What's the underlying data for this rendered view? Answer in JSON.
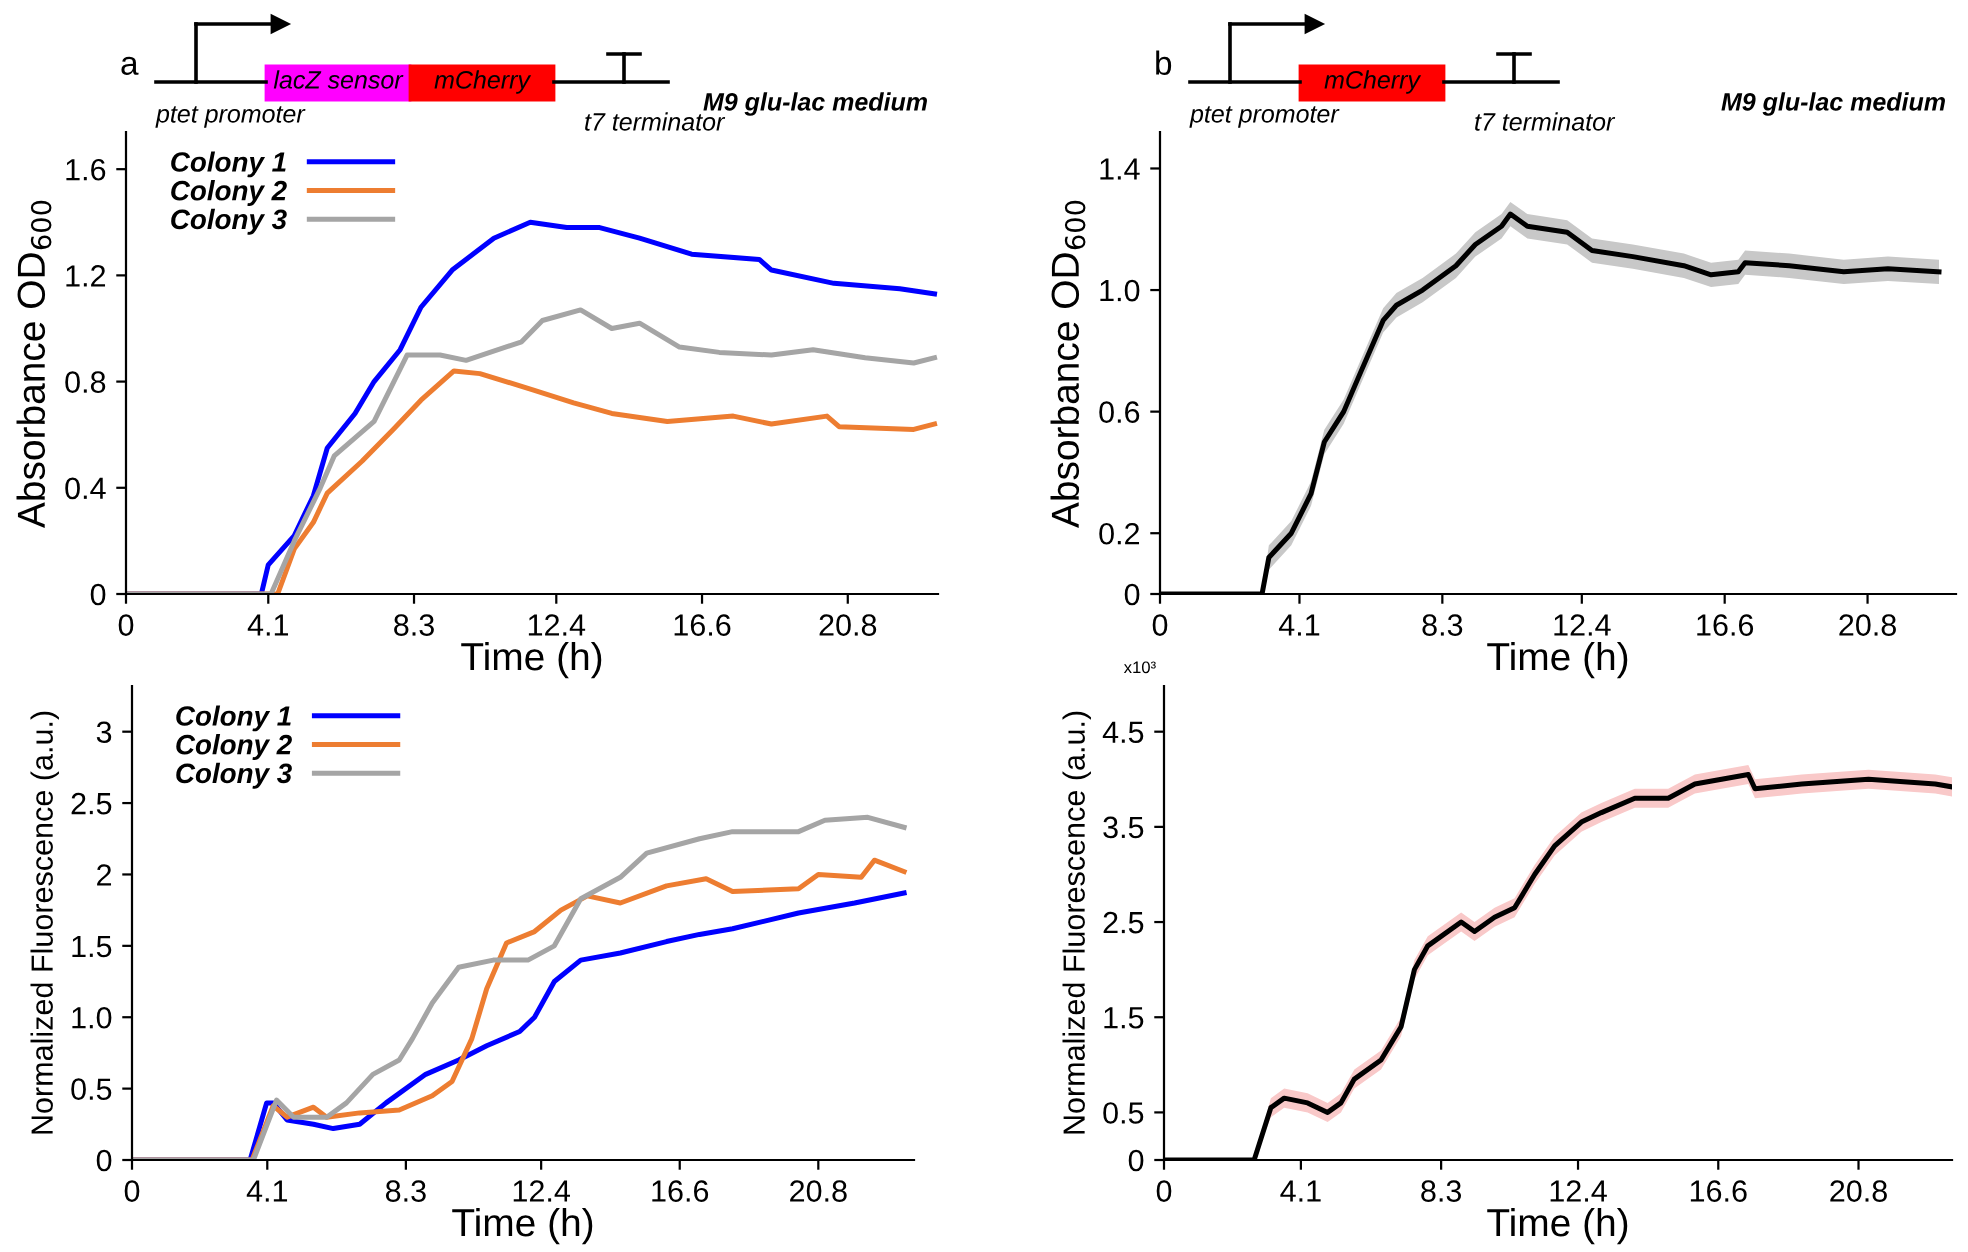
{
  "chart_data": [
    {
      "type": "line",
      "xlabel": "Time (h)",
      "ylabel": "Absorbance OD$_{600}$",
      "xlim": [
        0,
        23.4
      ],
      "ylim": [
        0,
        1.74
      ],
      "xticks": [
        0,
        4.1,
        8.3,
        12.4,
        16.6,
        20.8
      ],
      "yticks": [
        0,
        0.4,
        0.8,
        1.2,
        1.6
      ],
      "legend": "top left",
      "grid": false,
      "line_style": "solid",
      "marker": "none",
      "annotations": [
        "a",
        "lacZ sensor",
        "mCherry",
        "ptet promoter",
        "t7 terminator",
        "M9 glu-lac medium"
      ],
      "series": [
        {
          "name": "Colony 1",
          "color": "#0000ff",
          "x": [
            0,
            3.9,
            4.1,
            4.85,
            5.4,
            5.8,
            6.6,
            7.15,
            7.9,
            8.5,
            9.4,
            10.6,
            11.65,
            12.7,
            13.65,
            14.8,
            16.3,
            18.25,
            18.6,
            20.4,
            22.3,
            23.3
          ],
          "values": [
            0,
            0,
            0.11,
            0.22,
            0.37,
            0.55,
            0.68,
            0.8,
            0.92,
            1.08,
            1.22,
            1.34,
            1.4,
            1.38,
            1.38,
            1.34,
            1.28,
            1.26,
            1.22,
            1.17,
            1.15,
            1.13
          ]
        },
        {
          "name": "Colony 2",
          "color": "#ed7d31",
          "x": [
            0,
            4.37,
            4.85,
            5.4,
            5.8,
            6.8,
            7.7,
            8.5,
            9.45,
            10.2,
            11.7,
            12.9,
            14.0,
            15.6,
            17.5,
            18.6,
            20.2,
            20.55,
            22.7,
            23.3
          ],
          "values": [
            0,
            0,
            0.17,
            0.27,
            0.38,
            0.5,
            0.62,
            0.73,
            0.84,
            0.83,
            0.77,
            0.72,
            0.68,
            0.65,
            0.67,
            0.64,
            0.67,
            0.63,
            0.62,
            0.64
          ]
        },
        {
          "name": "Colony 3",
          "color": "#a5a5a5",
          "x": [
            0,
            4.18,
            4.85,
            5.6,
            6.0,
            7.15,
            8.1,
            9.05,
            9.8,
            11.4,
            12.0,
            13.1,
            14.0,
            14.8,
            15.95,
            17.1,
            18.6,
            19.8,
            21.3,
            22.7,
            23.3
          ],
          "values": [
            0,
            0,
            0.2,
            0.4,
            0.52,
            0.65,
            0.9,
            0.9,
            0.88,
            0.95,
            1.03,
            1.07,
            1.0,
            1.02,
            0.93,
            0.91,
            0.9,
            0.92,
            0.89,
            0.87,
            0.89
          ]
        }
      ]
    },
    {
      "type": "line",
      "xlabel": "Time (h)",
      "ylabel": "Absorbance OD$_{600}$",
      "xlim": [
        0,
        23.4
      ],
      "ylim": [
        0,
        1.52
      ],
      "xticks": [
        0,
        4.1,
        8.3,
        12.4,
        16.6,
        20.8
      ],
      "yticks": [
        0,
        0.2,
        0.6,
        {
          "value": 1,
          "label": "1.0"
        },
        1.4
      ],
      "grid": false,
      "line_style": "solid",
      "marker": "none",
      "annotations": [
        "b",
        "mCherry",
        "ptet promoter",
        "t7 terminator",
        "M9 glu-lac medium"
      ],
      "series": [
        {
          "color": "#000000",
          "x": [
            0,
            3.0,
            3.2,
            3.86,
            4.44,
            4.83,
            5.4,
            5.9,
            6.56,
            6.95,
            7.72,
            8.7,
            9.27,
            10.04,
            10.3,
            10.8,
            11.97,
            12.7,
            13.9,
            15.4,
            16.2,
            17.0,
            17.2,
            18.5,
            20.1,
            21.4,
            22.9
          ],
          "values": [
            0,
            0,
            0.12,
            0.2,
            0.33,
            0.5,
            0.6,
            0.73,
            0.9,
            0.95,
            1.0,
            1.08,
            1.15,
            1.21,
            1.25,
            1.21,
            1.19,
            1.13,
            1.11,
            1.08,
            1.05,
            1.06,
            1.09,
            1.08,
            1.06,
            1.07,
            1.06
          ],
          "lower": [
            0,
            0,
            0.08,
            0.16,
            0.29,
            0.46,
            0.56,
            0.69,
            0.86,
            0.91,
            0.96,
            1.04,
            1.11,
            1.17,
            1.21,
            1.17,
            1.15,
            1.09,
            1.07,
            1.04,
            1.01,
            1.02,
            1.05,
            1.04,
            1.02,
            1.03,
            1.02
          ],
          "upper": [
            0,
            0,
            0.16,
            0.24,
            0.37,
            0.54,
            0.64,
            0.77,
            0.94,
            0.99,
            1.04,
            1.12,
            1.19,
            1.25,
            1.29,
            1.25,
            1.23,
            1.17,
            1.15,
            1.12,
            1.09,
            1.1,
            1.13,
            1.12,
            1.1,
            1.11,
            1.1
          ]
        }
      ]
    },
    {
      "type": "line",
      "xlabel": "Time (h)",
      "ylabel": "Normalized Fluorescence (a.u.)",
      "xlim": [
        0,
        23.7
      ],
      "ylim": [
        0,
        3.32
      ],
      "xticks": [
        0,
        4.1,
        8.3,
        12.4,
        16.6,
        20.8
      ],
      "yticks": [
        0,
        0.5,
        {
          "value": 1,
          "label": "1.0"
        },
        1.5,
        2,
        2.5,
        3
      ],
      "legend": "top left",
      "grid": false,
      "line_style": "solid",
      "marker": "none",
      "series": [
        {
          "name": "Colony 1",
          "color": "#0000ff",
          "x": [
            0,
            3.58,
            4.08,
            4.28,
            4.7,
            5.5,
            6.1,
            6.9,
            7.7,
            8.9,
            9.9,
            10.75,
            11.75,
            12.2,
            12.8,
            13.6,
            14.8,
            16.2,
            17.2,
            18.2,
            20.2,
            21.9,
            23.4
          ],
          "values": [
            0,
            0,
            0.4,
            0.4,
            0.28,
            0.25,
            0.22,
            0.25,
            0.4,
            0.6,
            0.7,
            0.8,
            0.9,
            1.0,
            1.25,
            1.4,
            1.45,
            1.53,
            1.58,
            1.62,
            1.73,
            1.8,
            1.87
          ]
        },
        {
          "name": "Colony 2",
          "color": "#ed7d31",
          "x": [
            0,
            3.64,
            4.28,
            4.7,
            5.5,
            5.9,
            6.9,
            8.1,
            9.1,
            9.7,
            10.3,
            10.75,
            11.35,
            12.2,
            13.0,
            13.8,
            14.8,
            16.2,
            17.4,
            18.2,
            20.2,
            20.8,
            22.1,
            22.5,
            23.4
          ],
          "values": [
            0,
            0,
            0.38,
            0.3,
            0.37,
            0.3,
            0.33,
            0.35,
            0.45,
            0.55,
            0.85,
            1.2,
            1.52,
            1.6,
            1.75,
            1.85,
            1.8,
            1.92,
            1.97,
            1.88,
            1.9,
            2.0,
            1.98,
            2.1,
            2.02
          ]
        },
        {
          "name": "Colony 3",
          "color": "#a5a5a5",
          "x": [
            0,
            3.68,
            4.38,
            4.9,
            5.9,
            6.5,
            7.3,
            8.1,
            8.5,
            9.1,
            9.9,
            10.95,
            12.0,
            12.8,
            13.6,
            14.8,
            15.6,
            17.2,
            18.2,
            20.2,
            21.0,
            22.3,
            23.4
          ],
          "values": [
            0,
            0,
            0.42,
            0.3,
            0.3,
            0.4,
            0.6,
            0.7,
            0.85,
            1.1,
            1.35,
            1.4,
            1.4,
            1.5,
            1.83,
            1.98,
            2.15,
            2.25,
            2.3,
            2.3,
            2.38,
            2.4,
            2.33
          ]
        }
      ]
    },
    {
      "type": "line",
      "xlabel": "Time (h)",
      "ylabel": "Normalized Fluorescence (a.u.)",
      "xlim": [
        0,
        23.6
      ],
      "ylim": [
        0,
        4.98
      ],
      "xticks": [
        0,
        4.1,
        8.3,
        12.4,
        16.6,
        20.8
      ],
      "yticks": [
        0,
        0.5,
        1.5,
        2.5,
        3.5,
        4.5
      ],
      "grid": false,
      "line_style": "solid",
      "marker": "none",
      "annotations": [
        "x10³"
      ],
      "series": [
        {
          "color": "#000000",
          "x": [
            0,
            2.7,
            3.2,
            3.6,
            4.3,
            4.9,
            5.3,
            5.7,
            6.5,
            7.1,
            7.5,
            7.9,
            8.9,
            9.3,
            9.9,
            10.5,
            11.1,
            11.7,
            12.5,
            13.1,
            14.1,
            15.1,
            15.9,
            16.7,
            17.5,
            17.7,
            19.1,
            21.1,
            23.1,
            23.6
          ],
          "values": [
            0,
            0,
            0.55,
            0.65,
            0.6,
            0.5,
            0.6,
            0.85,
            1.05,
            1.4,
            2.0,
            2.25,
            2.5,
            2.4,
            2.55,
            2.65,
            3.0,
            3.3,
            3.55,
            3.65,
            3.8,
            3.8,
            3.95,
            4.0,
            4.05,
            3.9,
            3.95,
            4.0,
            3.95,
            3.92
          ],
          "lower": [
            0,
            0,
            0.45,
            0.55,
            0.5,
            0.4,
            0.5,
            0.75,
            0.95,
            1.3,
            1.9,
            2.15,
            2.4,
            2.3,
            2.45,
            2.55,
            2.9,
            3.2,
            3.45,
            3.55,
            3.7,
            3.7,
            3.85,
            3.9,
            3.95,
            3.8,
            3.85,
            3.9,
            3.85,
            3.82
          ],
          "upper": [
            0,
            0,
            0.65,
            0.75,
            0.7,
            0.6,
            0.7,
            0.95,
            1.15,
            1.5,
            2.1,
            2.35,
            2.6,
            2.5,
            2.65,
            2.75,
            3.1,
            3.4,
            3.65,
            3.75,
            3.9,
            3.9,
            4.05,
            4.1,
            4.15,
            4.0,
            4.05,
            4.1,
            4.05,
            4.02
          ]
        }
      ]
    }
  ]
}
